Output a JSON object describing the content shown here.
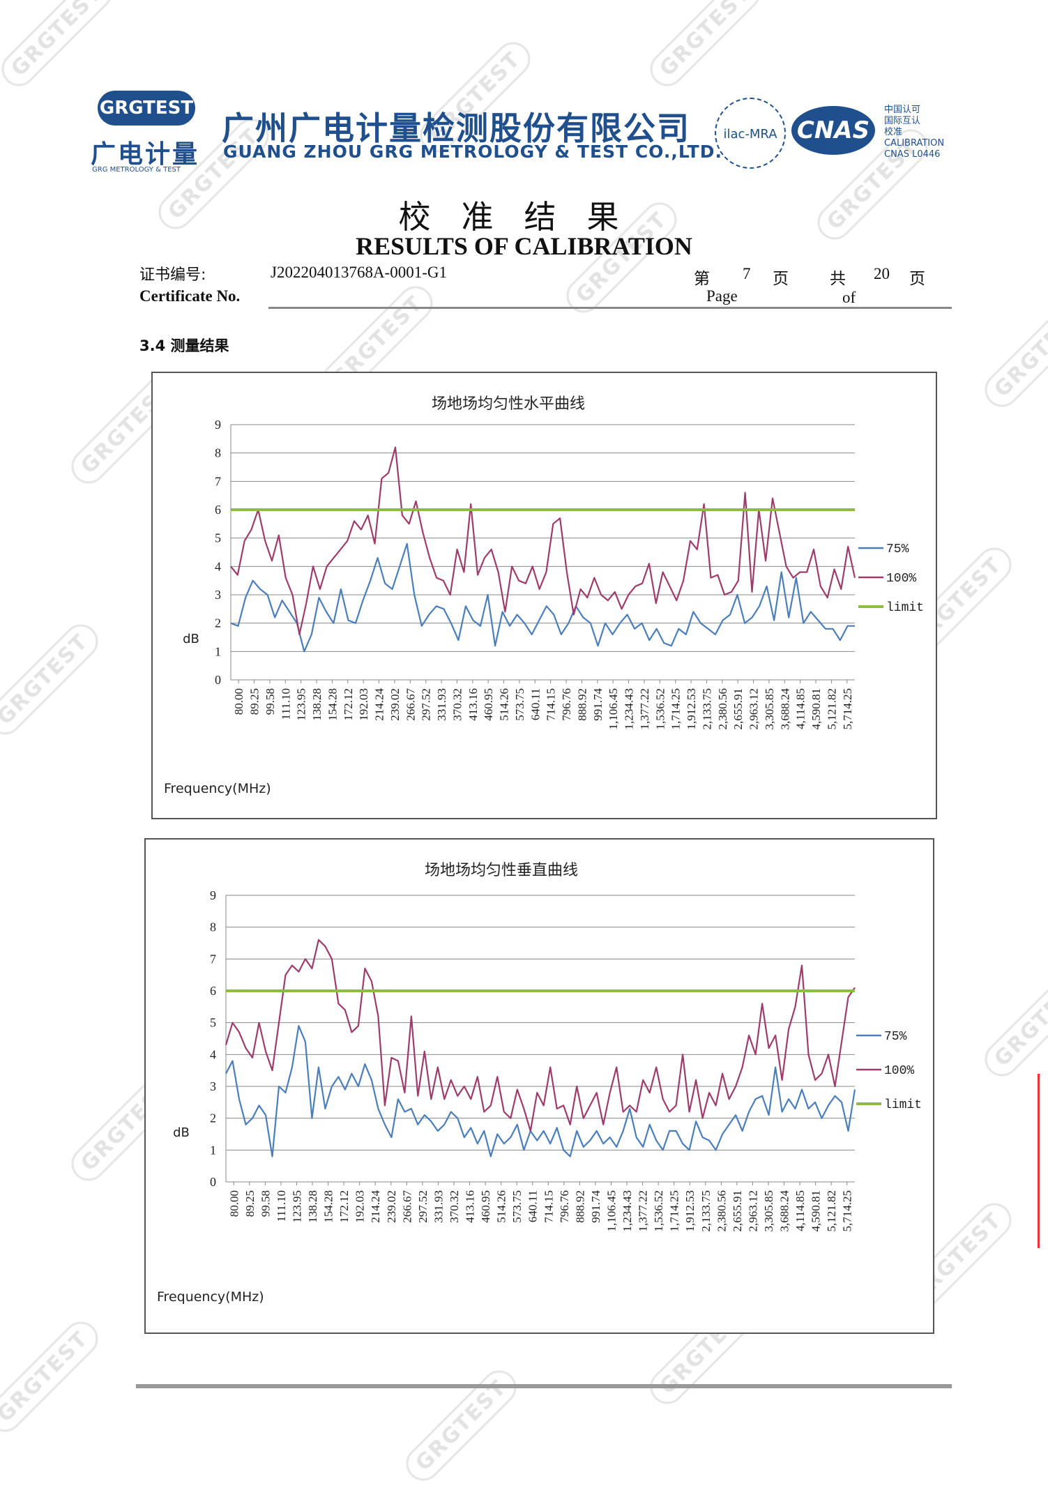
{
  "header": {
    "logo_badge": "GRGTEST",
    "logo_cn": "广电计量",
    "logo_en": "GRG METROLOGY & TEST",
    "company_cn": "广州广电计量检测股份有限公司",
    "company_en": "GUANG ZHOU GRG METROLOGY & TEST CO.,LTD.",
    "ilac": "ilac-MRA",
    "cnas": "CNAS",
    "cnas_text": [
      "中国认可",
      "国际互认",
      "校准",
      "CALIBRATION",
      "CNAS L0446"
    ]
  },
  "title": {
    "cn": "校准结果",
    "en": "RESULTS OF CALIBRATION"
  },
  "meta": {
    "cert_label_cn": "证书编号:",
    "cert_label_en": "Certificate No.",
    "cert_no": "J202204013768A-0001-G1",
    "page_cn": "第",
    "page_no": "7",
    "page_unit": "页",
    "total_cn": "共",
    "total_no": "20",
    "total_unit": "页",
    "page_en": "Page",
    "of_en": "of"
  },
  "section": "3.4 测量结果",
  "watermark": "GRGTEST",
  "chart_data": [
    {
      "type": "line",
      "title": "场地场均匀性水平曲线",
      "ylabel": "dB",
      "xlabel": "Frequency(MHz)",
      "ylim": [
        0,
        9
      ],
      "yticks": [
        "0",
        "1",
        "2",
        "3",
        "4",
        "5",
        "6",
        "7",
        "8",
        "9"
      ],
      "grid": true,
      "legend_position": "right",
      "xticks": [
        "80.00",
        "89.25",
        "99.58",
        "111.10",
        "123.95",
        "138.28",
        "154.28",
        "172.12",
        "192.03",
        "214.24",
        "239.02",
        "266.67",
        "297.52",
        "331.93",
        "370.32",
        "413.16",
        "460.95",
        "514.26",
        "573.75",
        "640.11",
        "714.15",
        "796.76",
        "888.92",
        "991.74",
        "1,106.45",
        "1,234.43",
        "1,377.22",
        "1,536.52",
        "1,714.25",
        "1,912.53",
        "2,133.75",
        "2,380.56",
        "2,655.91",
        "2,963.12",
        "3,305.85",
        "3,688.24",
        "4,114.85",
        "4,590.81",
        "5,121.82",
        "5,714.25"
      ],
      "series": [
        {
          "name": "75%",
          "color": "#4a7ebb",
          "values": [
            2.0,
            1.9,
            2.9,
            3.5,
            3.2,
            3.0,
            2.2,
            2.8,
            2.4,
            2.0,
            1.0,
            1.6,
            2.9,
            2.4,
            2.0,
            3.2,
            2.1,
            2.0,
            2.8,
            3.5,
            4.3,
            3.4,
            3.2,
            4.0,
            4.8,
            3.0,
            1.9,
            2.3,
            2.6,
            2.5,
            2.0,
            1.4,
            2.6,
            2.1,
            1.9,
            3.0,
            1.2,
            2.4,
            1.9,
            2.3,
            2.0,
            1.6,
            2.1,
            2.6,
            2.3,
            1.6,
            2.0,
            2.6,
            2.2,
            2.0,
            1.2,
            2.0,
            1.6,
            2.0,
            2.3,
            1.8,
            2.0,
            1.4,
            1.8,
            1.3,
            1.2,
            1.8,
            1.6,
            2.4,
            2.0,
            1.8,
            1.6,
            2.1,
            2.3,
            3.0,
            2.0,
            2.2,
            2.6,
            3.3,
            2.1,
            3.8,
            2.2,
            3.6,
            2.0,
            2.4,
            2.1,
            1.8,
            1.8,
            1.4,
            1.9,
            1.9
          ]
        },
        {
          "name": "100%",
          "color": "#9e3b6b",
          "values": [
            4.0,
            3.7,
            4.9,
            5.3,
            6.0,
            4.9,
            4.2,
            5.1,
            3.6,
            3.0,
            1.6,
            2.7,
            4.0,
            3.2,
            4.0,
            4.3,
            4.6,
            4.9,
            5.6,
            5.3,
            5.8,
            4.8,
            7.1,
            7.3,
            8.2,
            5.8,
            5.5,
            6.3,
            5.2,
            4.3,
            3.6,
            3.5,
            3.0,
            4.6,
            3.8,
            6.2,
            3.7,
            4.3,
            4.6,
            3.8,
            2.4,
            4.0,
            3.5,
            3.4,
            4.0,
            3.2,
            3.8,
            5.5,
            5.7,
            3.8,
            2.3,
            3.2,
            2.9,
            3.6,
            3.0,
            2.8,
            3.1,
            2.5,
            3.0,
            3.3,
            3.4,
            4.1,
            2.7,
            3.8,
            3.3,
            2.8,
            3.5,
            4.9,
            4.6,
            6.2,
            3.6,
            3.7,
            3.0,
            3.1,
            3.5,
            6.6,
            3.1,
            6.0,
            4.2,
            6.4,
            5.2,
            4.0,
            3.6,
            3.8,
            3.8,
            4.6,
            3.3,
            2.9,
            3.9,
            3.2,
            4.7,
            3.6
          ]
        },
        {
          "name": "limit",
          "color": "#8cbd3f",
          "values": [
            6,
            6
          ]
        }
      ]
    },
    {
      "type": "line",
      "title": "场地场均匀性垂直曲线",
      "ylabel": "dB",
      "xlabel": "Frequency(MHz)",
      "ylim": [
        0,
        9
      ],
      "yticks": [
        "0",
        "1",
        "2",
        "3",
        "4",
        "5",
        "6",
        "7",
        "8",
        "9"
      ],
      "grid": true,
      "legend_position": "right",
      "xticks": [
        "80.00",
        "89.25",
        "99.58",
        "111.10",
        "123.95",
        "138.28",
        "154.28",
        "172.12",
        "192.03",
        "214.24",
        "239.02",
        "266.67",
        "297.52",
        "331.93",
        "370.32",
        "413.16",
        "460.95",
        "514.26",
        "573.75",
        "640.11",
        "714.15",
        "796.76",
        "888.92",
        "991.74",
        "1,106.45",
        "1,234.43",
        "1,377.22",
        "1,536.52",
        "1,714.25",
        "1,912.53",
        "2,133.75",
        "2,380.56",
        "2,655.91",
        "2,963.12",
        "3,305.85",
        "3,688.24",
        "4,114.85",
        "4,590.81",
        "5,121.82",
        "5,714.25"
      ],
      "series": [
        {
          "name": "75%",
          "color": "#4a7ebb",
          "values": [
            3.4,
            3.8,
            2.6,
            1.8,
            2.0,
            2.4,
            2.1,
            0.8,
            3.0,
            2.8,
            3.6,
            4.9,
            4.4,
            2.0,
            3.6,
            2.3,
            3.0,
            3.3,
            2.9,
            3.4,
            3.0,
            3.7,
            3.2,
            2.3,
            1.8,
            1.4,
            2.6,
            2.2,
            2.3,
            1.8,
            2.1,
            1.9,
            1.6,
            1.8,
            2.2,
            2.0,
            1.4,
            1.7,
            1.2,
            1.6,
            0.8,
            1.5,
            1.2,
            1.4,
            1.8,
            1.0,
            1.6,
            1.3,
            1.6,
            1.2,
            1.7,
            1.0,
            0.8,
            1.6,
            1.1,
            1.3,
            1.6,
            1.2,
            1.4,
            1.1,
            1.6,
            2.3,
            1.4,
            1.1,
            1.8,
            1.3,
            1.0,
            1.6,
            1.6,
            1.2,
            1.0,
            1.9,
            1.4,
            1.3,
            1.0,
            1.5,
            1.8,
            2.1,
            1.6,
            2.2,
            2.6,
            2.7,
            2.1,
            3.6,
            2.2,
            2.6,
            2.3,
            2.9,
            2.3,
            2.5,
            2.0,
            2.4,
            2.7,
            2.5,
            1.6,
            2.9
          ]
        },
        {
          "name": "100%",
          "color": "#9e3b6b",
          "values": [
            4.3,
            5.0,
            4.7,
            4.2,
            3.9,
            5.0,
            4.1,
            3.5,
            5.0,
            6.5,
            6.8,
            6.6,
            7.0,
            6.7,
            7.6,
            7.4,
            7.0,
            5.6,
            5.4,
            4.7,
            4.9,
            6.7,
            6.3,
            5.2,
            2.4,
            3.9,
            3.8,
            2.8,
            5.2,
            2.7,
            4.1,
            2.6,
            3.6,
            2.6,
            3.2,
            2.7,
            3.0,
            2.6,
            3.3,
            2.2,
            2.4,
            3.3,
            2.2,
            2.0,
            2.9,
            2.3,
            1.6,
            2.8,
            2.4,
            3.6,
            2.3,
            2.4,
            1.8,
            3.0,
            2.0,
            2.4,
            2.8,
            1.8,
            2.8,
            3.6,
            2.2,
            2.4,
            2.2,
            3.2,
            2.8,
            3.6,
            2.6,
            2.2,
            2.4,
            4.0,
            2.2,
            3.2,
            2.0,
            2.8,
            2.4,
            3.4,
            2.6,
            3.0,
            3.6,
            4.6,
            4.0,
            5.6,
            4.2,
            4.6,
            3.2,
            4.8,
            5.5,
            6.8,
            4.0,
            3.2,
            3.4,
            4.0,
            3.0,
            4.4,
            5.8,
            6.1
          ]
        },
        {
          "name": "limit",
          "color": "#8cbd3f",
          "values": [
            6,
            6
          ]
        }
      ]
    }
  ]
}
